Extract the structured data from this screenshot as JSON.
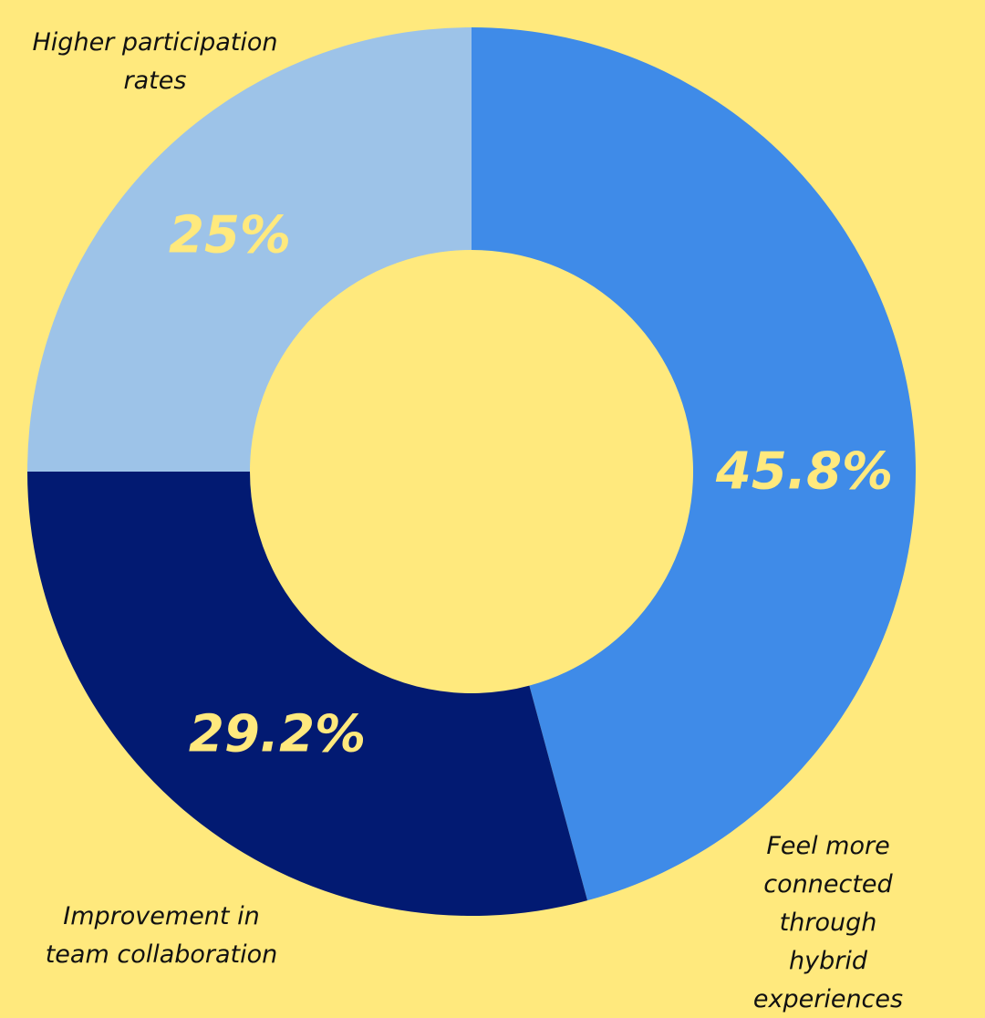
{
  "chart_data": {
    "type": "donut",
    "categories": [
      "Feel more connected\nthrough hybrid\nexperiences",
      "Improvement in\nteam collaboration",
      "Higher participation\nrates"
    ],
    "values": [
      45.8,
      29.2,
      25
    ],
    "value_labels": [
      "45.8%",
      "29.2%",
      "25%"
    ],
    "colors": [
      "#3f8be8",
      "#021a72",
      "#9dc3e8"
    ],
    "background": "#ffe97d"
  }
}
